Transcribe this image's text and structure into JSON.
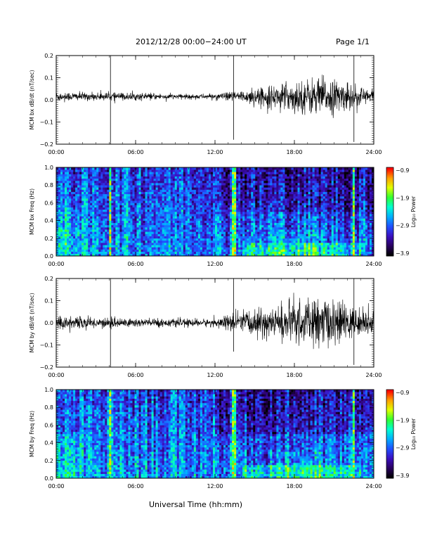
{
  "header": {
    "title": "2012/12/28  00:00−24:00 UT",
    "page": "Page 1/1"
  },
  "x_axis_title": "Universal Time (hh:mm)",
  "colors": {
    "trace": "#000000",
    "spectrogram_palette": [
      "#000000",
      "#2a0060",
      "#3a10c0",
      "#2050ff",
      "#00b0ff",
      "#00ffd0",
      "#30ff30",
      "#e0ff00",
      "#ffa000",
      "#ff0000"
    ]
  },
  "chart_data": [
    {
      "type": "line",
      "ylabel": "MCM bx dB/dt (nT/sec)",
      "xlim": [
        0,
        24
      ],
      "ylim": [
        -0.2,
        0.2
      ],
      "x_ticks": [
        "00:00",
        "06:00",
        "12:00",
        "18:00",
        "24:00"
      ],
      "y_ticks": [
        "−0.2",
        "−0.1",
        "0.0",
        "0.1",
        "0.2"
      ],
      "baseline": 0.015,
      "noise_envelope": {
        "x": [
          0,
          3,
          6,
          9,
          12,
          13.5,
          16,
          18,
          20,
          21.5,
          23,
          24
        ],
        "amplitude": [
          0.02,
          0.015,
          0.015,
          0.01,
          0.01,
          0.02,
          0.04,
          0.06,
          0.08,
          0.06,
          0.04,
          0.03
        ]
      },
      "spikes": [
        {
          "x": 4.1,
          "y_min": -0.2,
          "y_max": 0.2
        },
        {
          "x": 13.4,
          "y_min": -0.18,
          "y_max": 0.2
        },
        {
          "x": 22.5,
          "y_min": -0.19,
          "y_max": 0.2
        }
      ]
    },
    {
      "type": "heatmap",
      "ylabel": "MCM bx Freq (Hz)",
      "xlim": [
        0,
        24
      ],
      "ylim": [
        0.0,
        1.0
      ],
      "x_ticks": [
        "00:00",
        "06:00",
        "12:00",
        "18:00",
        "24:00"
      ],
      "y_ticks": [
        "0.0",
        "0.2",
        "0.4",
        "0.6",
        "0.8",
        "1.0"
      ],
      "colorbar": {
        "label": "Log₁₀ Power",
        "range": [
          -3.9,
          -0.9
        ],
        "ticks": [
          "−0.9",
          "−1.9",
          "−2.9",
          "−3.9"
        ]
      },
      "bright_columns": [
        4.1,
        13.4,
        22.5
      ]
    },
    {
      "type": "line",
      "ylabel": "MCM by dB/dt (nT/sec)",
      "xlim": [
        0,
        24
      ],
      "ylim": [
        -0.2,
        0.2
      ],
      "x_ticks": [
        "00:00",
        "06:00",
        "12:00",
        "18:00",
        "24:00"
      ],
      "y_ticks": [
        "−0.2",
        "−0.1",
        "0.0",
        "0.1",
        "0.2"
      ],
      "baseline": 0.0,
      "noise_envelope": {
        "x": [
          0,
          3,
          6,
          9,
          12,
          13.5,
          16,
          18,
          20,
          21.5,
          23,
          24
        ],
        "amplitude": [
          0.03,
          0.02,
          0.02,
          0.015,
          0.015,
          0.04,
          0.06,
          0.08,
          0.1,
          0.08,
          0.05,
          0.04
        ]
      },
      "spikes": [
        {
          "x": 4.1,
          "y_min": -0.2,
          "y_max": 0.2
        },
        {
          "x": 13.4,
          "y_min": -0.13,
          "y_max": 0.2
        },
        {
          "x": 22.5,
          "y_min": -0.19,
          "y_max": 0.2
        }
      ]
    },
    {
      "type": "heatmap",
      "ylabel": "MCM by Freq (Hz)",
      "xlim": [
        0,
        24
      ],
      "ylim": [
        0.0,
        1.0
      ],
      "x_ticks": [
        "00:00",
        "06:00",
        "12:00",
        "18:00",
        "24:00"
      ],
      "y_ticks": [
        "0.0",
        "0.2",
        "0.4",
        "0.6",
        "0.8",
        "1.0"
      ],
      "colorbar": {
        "label": "Log₁₀ Power",
        "range": [
          -3.9,
          -0.9
        ],
        "ticks": [
          "−0.9",
          "−1.9",
          "−2.9",
          "−3.9"
        ]
      },
      "bright_columns": [
        4.1,
        13.4,
        22.5
      ]
    }
  ]
}
